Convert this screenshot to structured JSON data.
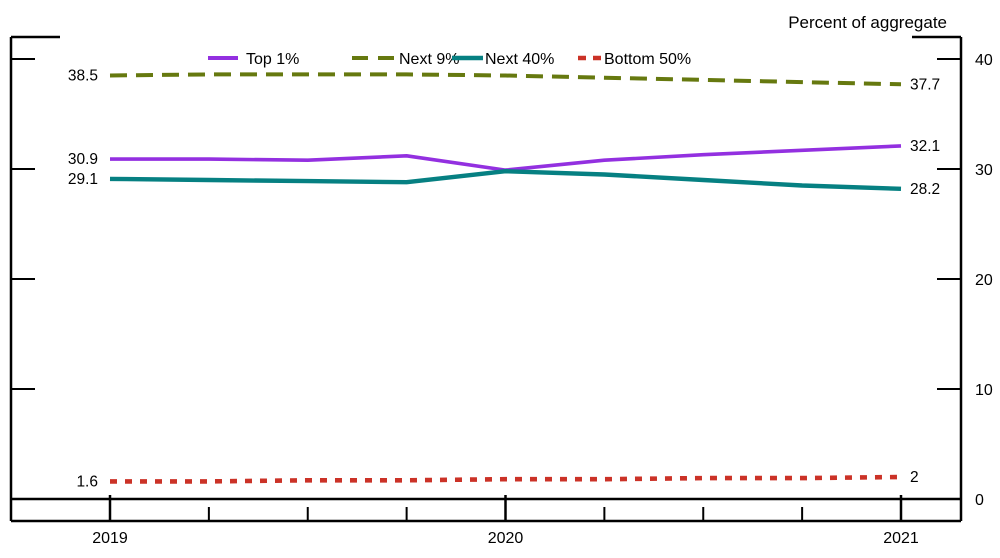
{
  "title": "Percent of aggregate",
  "legend": {
    "items": [
      {
        "label": "Top 1%",
        "color": "#9330e0",
        "style": "solid"
      },
      {
        "label": "Next 9%",
        "color": "#66790f",
        "style": "dashed"
      },
      {
        "label": "Next 40%",
        "color": "#068082",
        "style": "solid"
      },
      {
        "label": "Bottom 50%",
        "color": "#cb3227",
        "style": "dotted"
      }
    ]
  },
  "axes": {
    "y_tick_values": [
      40,
      30,
      20,
      10,
      0
    ],
    "y_right_tick_labels": [
      "40",
      "30",
      "20",
      "10",
      "0"
    ],
    "x_tick_labels": [
      "2019",
      "2020",
      "2021"
    ],
    "axis_color": "#000000"
  },
  "chart_data": {
    "type": "line",
    "x": [
      2019.0,
      2019.25,
      2019.5,
      2019.75,
      2020.0,
      2020.25,
      2020.5,
      2020.75,
      2021.0
    ],
    "x_tick_labels": [
      "2019",
      "2020",
      "2021"
    ],
    "title": "",
    "xlabel": "",
    "ylabel": "Percent of aggregate",
    "ylim": [
      0,
      42
    ],
    "y_ticks": [
      0,
      10,
      20,
      30,
      40
    ],
    "grid": false,
    "legend_position": "top",
    "series": [
      {
        "name": "Next 9%",
        "color": "#66790f",
        "style": "dashed",
        "values": [
          38.5,
          38.6,
          38.6,
          38.6,
          38.5,
          38.3,
          38.1,
          37.9,
          37.7
        ],
        "start_label": "38.5",
        "end_label": "37.7"
      },
      {
        "name": "Top 1%",
        "color": "#9330e0",
        "style": "solid",
        "values": [
          30.9,
          30.9,
          30.8,
          31.2,
          29.9,
          30.8,
          31.3,
          31.7,
          32.1
        ],
        "start_label": "30.9",
        "end_label": "32.1"
      },
      {
        "name": "Next 40%",
        "color": "#068082",
        "style": "solid",
        "values": [
          29.1,
          29.0,
          28.9,
          28.8,
          29.8,
          29.5,
          29.0,
          28.5,
          28.2
        ],
        "start_label": "29.1",
        "end_label": "28.2"
      },
      {
        "name": "Bottom 50%",
        "color": "#cb3227",
        "style": "dotted",
        "values": [
          1.6,
          1.6,
          1.7,
          1.7,
          1.8,
          1.8,
          1.9,
          1.9,
          2.0
        ],
        "start_label": "1.6",
        "end_label": "2"
      }
    ]
  }
}
